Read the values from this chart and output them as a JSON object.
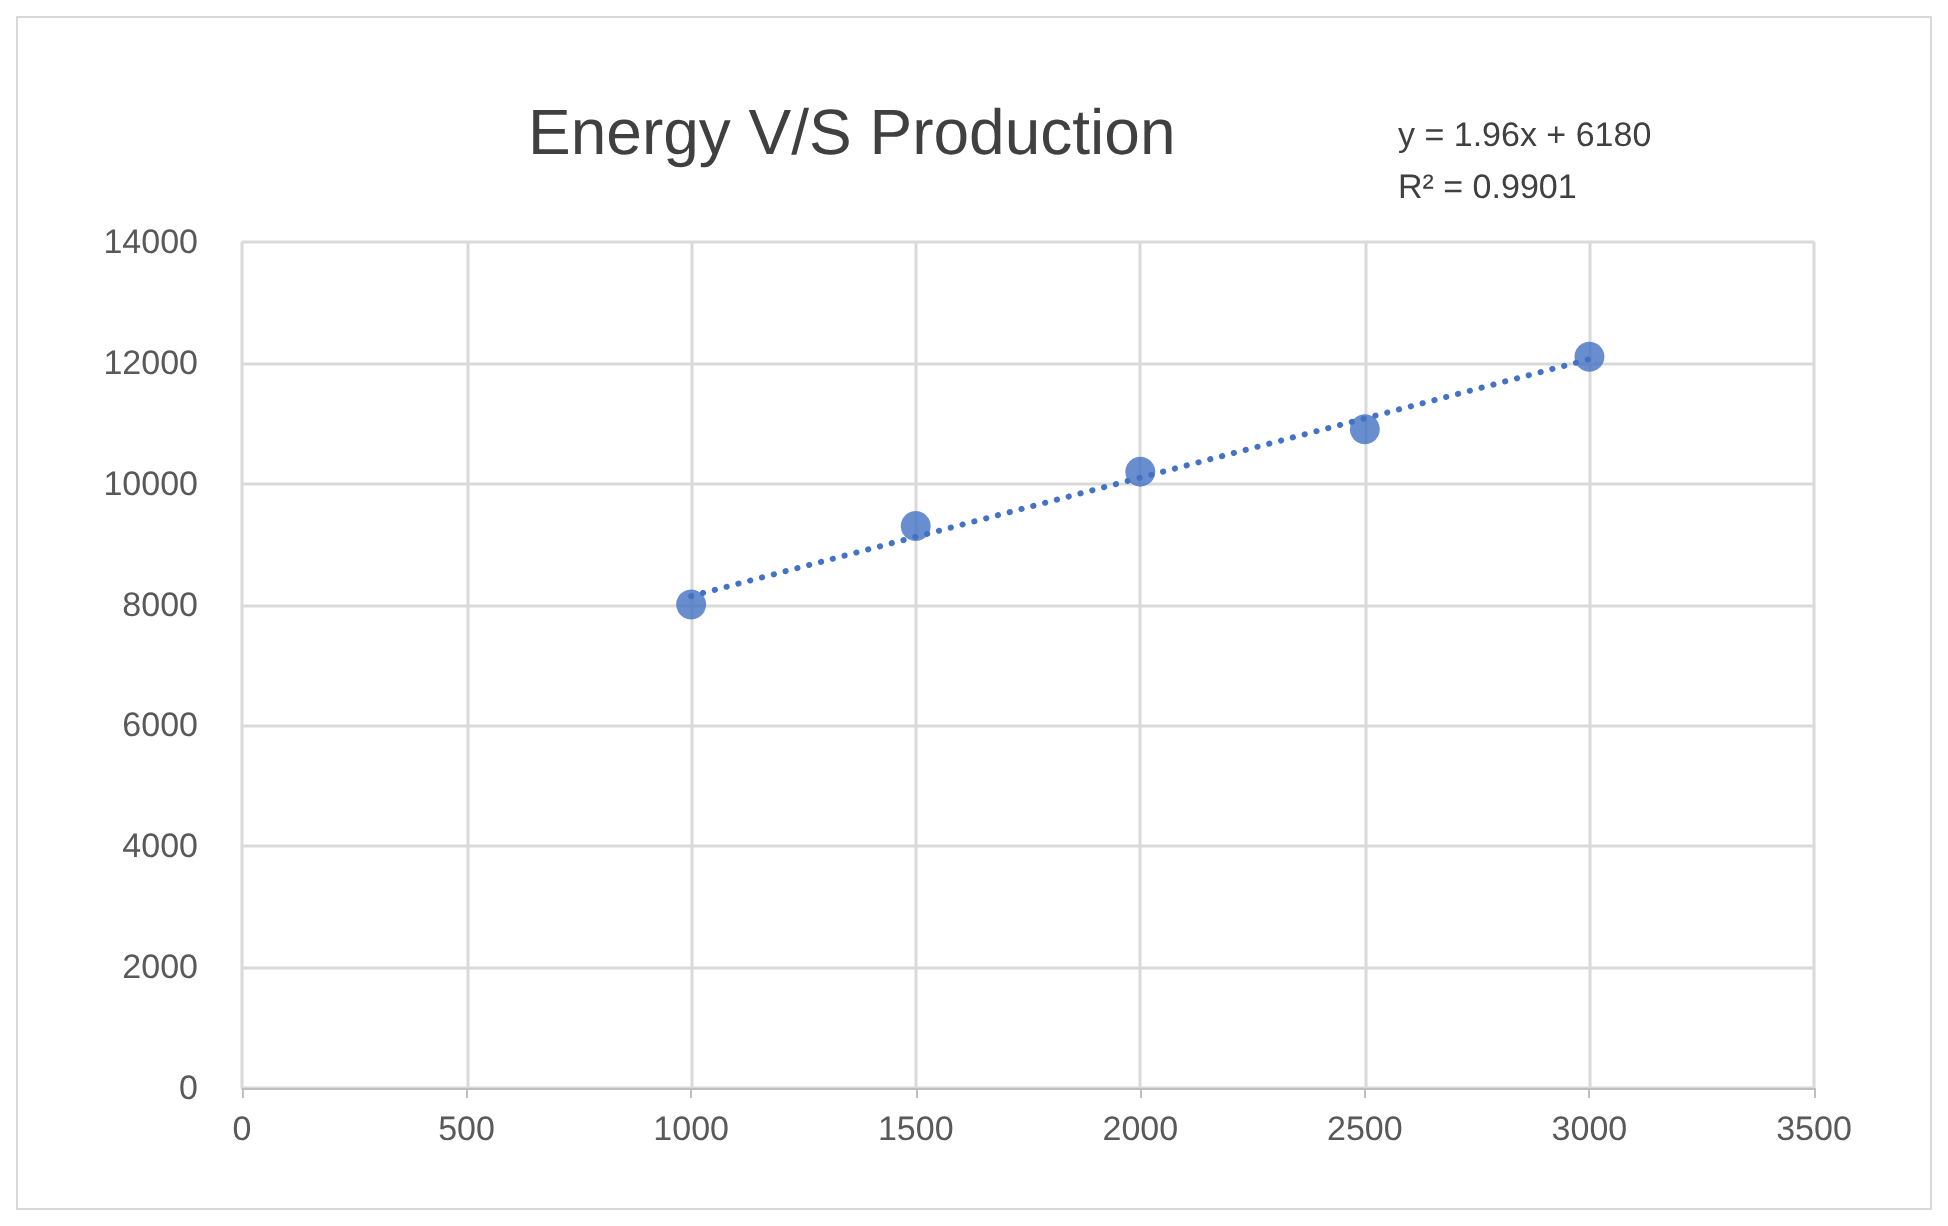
{
  "chart_data": {
    "type": "scatter",
    "title": "Energy V/S Production",
    "annotations": [
      "y = 1.96x + 6180",
      "R² = 0.9901"
    ],
    "series": [
      {
        "color": "#4472c4",
        "x": [
          1000,
          1500,
          2000,
          2500,
          3000
        ],
        "values": [
          8000,
          9300,
          10200,
          10900,
          12100
        ],
        "marker": "circle"
      },
      {
        "type": "line",
        "color": "#4472c4",
        "x": [
          1000,
          3000
        ],
        "values": [
          8140,
          12060
        ],
        "line_style": "dotted",
        "marker": "none"
      }
    ],
    "xlim": [
      0,
      3500
    ],
    "xticks": [
      0,
      500,
      1000,
      1500,
      2000,
      2500,
      3000,
      3500
    ],
    "ylim": [
      0,
      14000
    ],
    "yticks": [
      0,
      2000,
      4000,
      6000,
      8000,
      10000,
      12000,
      14000
    ],
    "grid": true
  }
}
